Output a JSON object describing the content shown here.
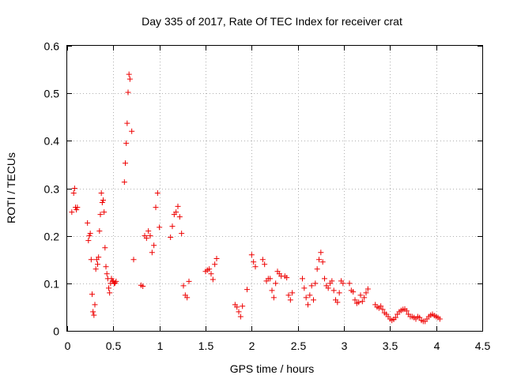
{
  "chart_data": {
    "type": "scatter",
    "title": "Day 335 of 2017, Rate Of TEC Index for receiver crat",
    "xlabel": "GPS time / hours",
    "ylabel": "ROTI / TECUs",
    "xlim": [
      0,
      4.5
    ],
    "ylim": [
      0,
      0.6
    ],
    "xticks": [
      "0",
      "0.5",
      "1",
      "1.5",
      "2",
      "2.5",
      "3",
      "3.5",
      "4",
      "4.5"
    ],
    "yticks": [
      "0",
      "0.1",
      "0.2",
      "0.3",
      "0.4",
      "0.5",
      "0.6"
    ],
    "grid": true,
    "marker": "+",
    "color": "#ee0000",
    "series": [
      {
        "name": "ROTI",
        "x": [
          0.05,
          0.07,
          0.08,
          0.09,
          0.1,
          0.11,
          0.22,
          0.23,
          0.24,
          0.25,
          0.26,
          0.27,
          0.28,
          0.29,
          0.3,
          0.31,
          0.32,
          0.33,
          0.34,
          0.35,
          0.36,
          0.37,
          0.38,
          0.39,
          0.4,
          0.41,
          0.42,
          0.43,
          0.44,
          0.45,
          0.46,
          0.47,
          0.48,
          0.49,
          0.5,
          0.51,
          0.52,
          0.53,
          0.62,
          0.63,
          0.64,
          0.65,
          0.66,
          0.67,
          0.68,
          0.7,
          0.72,
          0.8,
          0.82,
          0.84,
          0.86,
          0.88,
          0.9,
          0.92,
          0.94,
          0.96,
          0.98,
          1.0,
          1.12,
          1.14,
          1.16,
          1.18,
          1.2,
          1.22,
          1.24,
          1.26,
          1.28,
          1.3,
          1.32,
          1.5,
          1.52,
          1.54,
          1.56,
          1.58,
          1.6,
          1.62,
          1.82,
          1.84,
          1.86,
          1.88,
          1.9,
          1.95,
          2.0,
          2.02,
          2.04,
          2.12,
          2.14,
          2.16,
          2.18,
          2.2,
          2.22,
          2.24,
          2.26,
          2.28,
          2.3,
          2.32,
          2.36,
          2.38,
          2.4,
          2.42,
          2.44,
          2.55,
          2.57,
          2.59,
          2.61,
          2.63,
          2.65,
          2.67,
          2.69,
          2.71,
          2.73,
          2.75,
          2.77,
          2.79,
          2.81,
          2.83,
          2.85,
          2.87,
          2.89,
          2.91,
          2.93,
          2.95,
          2.97,
          2.99,
          3.06,
          3.08,
          3.1,
          3.12,
          3.14,
          3.16,
          3.18,
          3.2,
          3.22,
          3.24,
          3.26,
          3.34,
          3.36,
          3.38,
          3.4,
          3.42,
          3.44,
          3.46,
          3.48,
          3.5,
          3.52,
          3.54,
          3.56,
          3.58,
          3.6,
          3.62,
          3.64,
          3.66,
          3.68,
          3.7,
          3.72,
          3.74,
          3.76,
          3.78,
          3.8,
          3.82,
          3.84,
          3.86,
          3.88,
          3.9,
          3.92,
          3.94,
          3.96,
          3.98,
          4.0,
          4.02,
          4.04
        ],
        "y": [
          0.25,
          0.29,
          0.3,
          0.26,
          0.255,
          0.26,
          0.227,
          0.19,
          0.2,
          0.205,
          0.15,
          0.077,
          0.04,
          0.033,
          0.055,
          0.13,
          0.15,
          0.14,
          0.155,
          0.21,
          0.245,
          0.29,
          0.27,
          0.275,
          0.25,
          0.175,
          0.135,
          0.12,
          0.11,
          0.09,
          0.08,
          0.1,
          0.11,
          0.105,
          0.104,
          0.1,
          0.101,
          0.104,
          0.313,
          0.353,
          0.395,
          0.437,
          0.502,
          0.54,
          0.53,
          0.42,
          0.15,
          0.096,
          0.094,
          0.2,
          0.195,
          0.21,
          0.2,
          0.165,
          0.18,
          0.26,
          0.29,
          0.218,
          0.197,
          0.22,
          0.245,
          0.25,
          0.262,
          0.24,
          0.205,
          0.095,
          0.075,
          0.07,
          0.104,
          0.125,
          0.128,
          0.13,
          0.12,
          0.108,
          0.14,
          0.152,
          0.055,
          0.05,
          0.04,
          0.03,
          0.052,
          0.087,
          0.16,
          0.145,
          0.135,
          0.15,
          0.14,
          0.105,
          0.11,
          0.11,
          0.085,
          0.07,
          0.1,
          0.125,
          0.12,
          0.115,
          0.115,
          0.112,
          0.075,
          0.065,
          0.08,
          0.11,
          0.09,
          0.07,
          0.055,
          0.075,
          0.095,
          0.065,
          0.1,
          0.13,
          0.15,
          0.165,
          0.145,
          0.11,
          0.095,
          0.09,
          0.1,
          0.105,
          0.085,
          0.065,
          0.06,
          0.08,
          0.105,
          0.1,
          0.1,
          0.085,
          0.082,
          0.065,
          0.058,
          0.06,
          0.075,
          0.062,
          0.07,
          0.08,
          0.088,
          0.055,
          0.05,
          0.048,
          0.052,
          0.045,
          0.038,
          0.035,
          0.03,
          0.025,
          0.022,
          0.024,
          0.028,
          0.035,
          0.04,
          0.043,
          0.045,
          0.046,
          0.042,
          0.035,
          0.03,
          0.03,
          0.028,
          0.025,
          0.03,
          0.028,
          0.022,
          0.02,
          0.02,
          0.025,
          0.03,
          0.033,
          0.035,
          0.032,
          0.03,
          0.028,
          0.025
        ]
      }
    ]
  }
}
